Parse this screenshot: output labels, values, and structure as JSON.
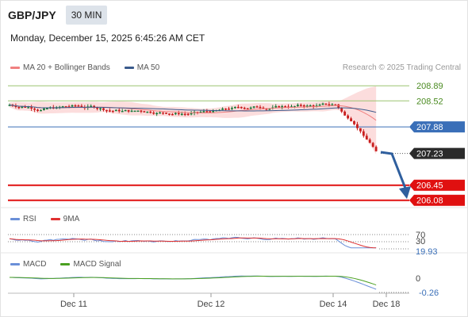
{
  "header": {
    "symbol": "GBP/JPY",
    "timeframe": "30 MIN",
    "datetime": "Monday, December 15, 2025 6:45:26 AM CET"
  },
  "legend": {
    "ma20_label": "MA 20 + Bollinger Bands",
    "ma50_label": "MA 50",
    "rsi_label": "RSI",
    "rsi_ma_label": "9MA",
    "macd_label": "MACD",
    "macd_signal_label": "MACD Signal"
  },
  "credit": "Research © 2025 Trading Central",
  "colors": {
    "ma20": "#f08080",
    "ma50": "#3a5a8c",
    "bollinger_fill": "#fbd5d5",
    "resistance": "#9cc470",
    "pivot": "#3a6fb8",
    "support": "#e01010",
    "candle_up": "#1a7a3a",
    "candle_down": "#c81e1e",
    "current_tag": "#2b2b2b",
    "arrow": "#2f5f9e",
    "rsi": "#6a8fd8",
    "rsi_ma": "#e03030",
    "macd": "#6a8fd8",
    "macd_signal": "#4aa020"
  },
  "chart_data": {
    "type": "candlestick",
    "y_range": [
      205.9,
      209.05
    ],
    "levels": [
      {
        "name": "resistance-2",
        "value": 208.89,
        "label": "208.89",
        "style": "resistance"
      },
      {
        "name": "resistance-1",
        "value": 208.52,
        "label": "208.52",
        "style": "resistance"
      },
      {
        "name": "pivot",
        "value": 207.88,
        "label": "207.88",
        "style": "pivot"
      },
      {
        "name": "current-price",
        "value": 207.23,
        "label": "207.23",
        "style": "current"
      },
      {
        "name": "support-1",
        "value": 206.45,
        "label": "206.45",
        "style": "support"
      },
      {
        "name": "support-2",
        "value": 206.08,
        "label": "206.08",
        "style": "support"
      }
    ],
    "x_ticks": [
      "Dec 11",
      "Dec 12",
      "Dec 14",
      "Dec 18"
    ],
    "rsi": {
      "levels": [
        "70",
        "30"
      ],
      "current": "19.93"
    },
    "macd": {
      "zero": "0",
      "current": "-0.26"
    },
    "forecast": {
      "from": 207.23,
      "to": 206.08
    }
  }
}
